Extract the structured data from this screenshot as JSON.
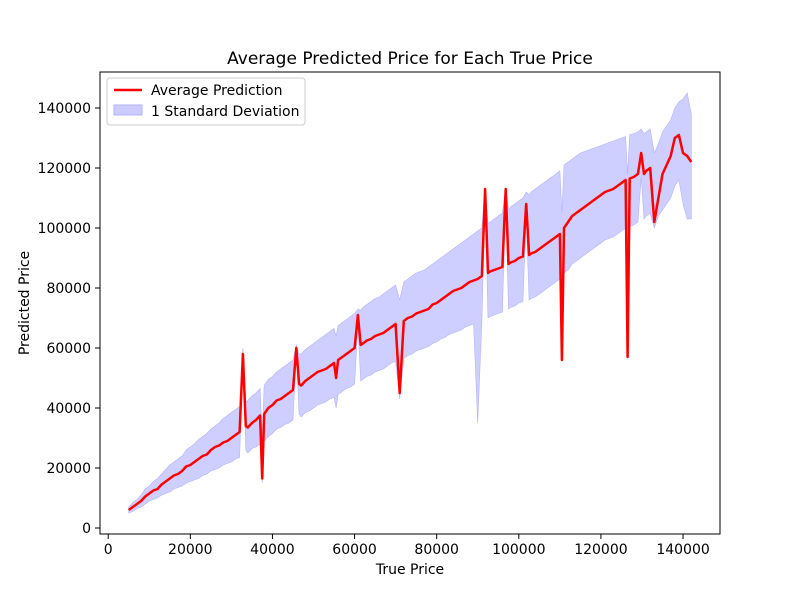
{
  "chart_data": {
    "type": "line",
    "title": "Average Predicted Price for Each True Price",
    "xlabel": "True Price",
    "ylabel": "Predicted Price",
    "xlim": [
      -2000,
      149000
    ],
    "ylim": [
      -2000,
      152000
    ],
    "xticks": [
      0,
      20000,
      40000,
      60000,
      80000,
      100000,
      120000,
      140000
    ],
    "yticks": [
      0,
      20000,
      40000,
      60000,
      80000,
      100000,
      120000,
      140000
    ],
    "grid": false,
    "legend_position": "top-left",
    "colors": {
      "line": "#ff0000",
      "band_fill": "#ccccff",
      "band_edge": "#b3b3ff"
    },
    "series": [
      {
        "name": "Average Prediction",
        "x": [
          5000,
          6000,
          7000,
          8000,
          9000,
          10000,
          11000,
          12000,
          13000,
          14000,
          15000,
          16000,
          17000,
          18000,
          19000,
          20000,
          21000,
          22000,
          23000,
          24000,
          25000,
          26000,
          27000,
          28000,
          29000,
          30000,
          31000,
          32000,
          32800,
          33500,
          34000,
          35000,
          36000,
          37000,
          37500,
          38000,
          39000,
          40000,
          41000,
          42000,
          43000,
          44000,
          45000,
          45800,
          46500,
          47000,
          48000,
          49000,
          50000,
          51000,
          52000,
          53000,
          54000,
          55000,
          55500,
          56000,
          57000,
          58000,
          59000,
          60000,
          60800,
          61500,
          62000,
          63000,
          64000,
          65000,
          66000,
          67000,
          68000,
          69000,
          70000,
          71000,
          72000,
          73000,
          74000,
          75000,
          76000,
          77000,
          78000,
          79000,
          80000,
          81000,
          82000,
          83000,
          84000,
          85000,
          86000,
          87000,
          88000,
          89000,
          90000,
          91000,
          91800,
          92500,
          93000,
          94000,
          95000,
          96000,
          96800,
          97500,
          98000,
          99000,
          100000,
          101000,
          101800,
          102500,
          103000,
          104000,
          105000,
          106000,
          107000,
          108000,
          109000,
          110000,
          110500,
          111000,
          112000,
          113000,
          114000,
          115000,
          116000,
          117000,
          118000,
          119000,
          120000,
          121000,
          122000,
          123000,
          124000,
          125000,
          126000,
          126500,
          127000,
          128000,
          129000,
          129800,
          130500,
          131000,
          132000,
          133000,
          134000,
          135000,
          136000,
          137000,
          138000,
          139000,
          140000,
          141000,
          142000
        ],
        "values": [
          6000,
          7000,
          8000,
          9000,
          10500,
          11500,
          12500,
          13000,
          14500,
          15500,
          16500,
          17500,
          18000,
          19000,
          20500,
          21000,
          22000,
          23000,
          24000,
          24500,
          26000,
          27000,
          27500,
          28500,
          29000,
          30000,
          31000,
          32000,
          58000,
          34000,
          33500,
          35000,
          36000,
          37500,
          16500,
          38000,
          40000,
          41000,
          42500,
          43000,
          44000,
          45000,
          46000,
          60000,
          48000,
          47500,
          49000,
          50000,
          51000,
          52000,
          52500,
          53000,
          54000,
          55000,
          50000,
          56000,
          57000,
          58000,
          59000,
          60000,
          71000,
          61000,
          61500,
          62500,
          63000,
          64000,
          64500,
          65000,
          66000,
          67000,
          68000,
          45000,
          69000,
          70000,
          70500,
          71500,
          72000,
          72500,
          73000,
          74500,
          75000,
          76000,
          77000,
          78000,
          79000,
          79500,
          80000,
          81000,
          82000,
          82500,
          83000,
          84000,
          113000,
          85000,
          85500,
          86000,
          86500,
          87000,
          113000,
          88000,
          88500,
          89000,
          90000,
          90500,
          108000,
          91000,
          91500,
          92000,
          93000,
          94000,
          95000,
          96000,
          97000,
          98000,
          56000,
          100000,
          102000,
          104000,
          105000,
          106000,
          107000,
          108000,
          109000,
          110000,
          111000,
          112000,
          112500,
          113000,
          114000,
          115000,
          116000,
          57000,
          116500,
          117000,
          118000,
          125000,
          118000,
          119000,
          120000,
          102000,
          110000,
          118000,
          121000,
          124000,
          130000,
          131000,
          125000,
          124000,
          122000
        ]
      },
      {
        "name": "1 Standard Deviation",
        "band_upper": [
          7000,
          8500,
          9500,
          11000,
          13000,
          14000,
          15500,
          16500,
          18000,
          19500,
          21000,
          22000,
          23000,
          24000,
          26000,
          27000,
          28000,
          29500,
          30500,
          31500,
          33000,
          34000,
          35000,
          36500,
          37500,
          38500,
          39500,
          40500,
          60000,
          42000,
          42500,
          44000,
          45000,
          46500,
          30000,
          47500,
          49500,
          50500,
          52000,
          53000,
          54000,
          55000,
          56000,
          61000,
          58000,
          58000,
          59500,
          60500,
          61500,
          62500,
          63500,
          64500,
          65500,
          66500,
          64000,
          67500,
          68500,
          69500,
          70500,
          71500,
          73000,
          72500,
          73500,
          74500,
          75500,
          76500,
          77000,
          78000,
          79000,
          80000,
          81000,
          76000,
          82000,
          83000,
          84000,
          85000,
          85500,
          86000,
          87000,
          88000,
          89000,
          90000,
          91000,
          92000,
          93000,
          94000,
          95000,
          96000,
          97000,
          98000,
          99000,
          100000,
          113500,
          101500,
          102000,
          103000,
          104000,
          105000,
          113500,
          106000,
          107000,
          108000,
          109000,
          110000,
          112000,
          111000,
          112000,
          113000,
          114000,
          115000,
          116000,
          117000,
          118000,
          119000,
          105000,
          121000,
          122000,
          123000,
          124000,
          125000,
          125500,
          126000,
          126500,
          127000,
          127500,
          128000,
          128500,
          129000,
          129500,
          130000,
          130500,
          118000,
          131000,
          131500,
          132000,
          133000,
          131500,
          132000,
          133000,
          125000,
          128000,
          132000,
          134000,
          136000,
          140000,
          142000,
          143000,
          145000,
          138000
        ],
        "band_lower": [
          5000,
          5500,
          6500,
          7000,
          8000,
          9000,
          9500,
          10000,
          11000,
          11500,
          12000,
          13000,
          13500,
          14000,
          15000,
          15500,
          16000,
          16500,
          17500,
          18000,
          19000,
          19500,
          20000,
          21000,
          21500,
          22000,
          23000,
          23500,
          56000,
          26000,
          25000,
          26500,
          27000,
          28000,
          15000,
          29000,
          30500,
          31500,
          33000,
          33500,
          34500,
          35000,
          36000,
          59000,
          38000,
          37000,
          38500,
          39000,
          40000,
          41000,
          41500,
          42000,
          43000,
          43500,
          40000,
          44500,
          45500,
          46500,
          47000,
          48000,
          68000,
          49000,
          49500,
          50500,
          51000,
          52000,
          52500,
          53000,
          54000,
          55000,
          55500,
          43000,
          56500,
          57500,
          58000,
          59000,
          59500,
          60000,
          60500,
          61500,
          62000,
          63000,
          63500,
          64500,
          65000,
          65500,
          66000,
          67000,
          67500,
          68000,
          35000,
          69000,
          110000,
          70000,
          70500,
          71000,
          71500,
          72000,
          110000,
          73000,
          73500,
          74000,
          75000,
          75500,
          104000,
          76000,
          76500,
          77000,
          78000,
          79000,
          80000,
          81000,
          82000,
          83000,
          56000,
          85000,
          86000,
          88000,
          89000,
          90000,
          91000,
          92000,
          93000,
          94000,
          95000,
          96000,
          96500,
          97000,
          98000,
          99000,
          100000,
          57000,
          100500,
          101000,
          102000,
          117000,
          103000,
          104000,
          105000,
          100000,
          104000,
          106000,
          108000,
          110000,
          114000,
          116000,
          108000,
          103000,
          103000
        ]
      }
    ]
  }
}
